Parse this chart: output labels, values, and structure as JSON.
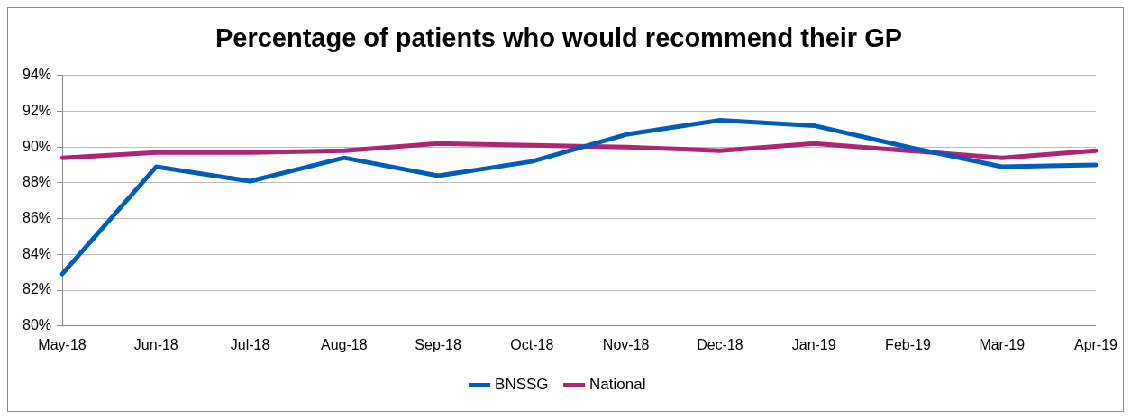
{
  "chart_data": {
    "type": "line",
    "title": "Percentage of patients who would recommend their GP",
    "categories": [
      "May-18",
      "Jun-18",
      "Jul-18",
      "Aug-18",
      "Sep-18",
      "Oct-18",
      "Nov-18",
      "Dec-18",
      "Jan-19",
      "Feb-19",
      "Mar-19",
      "Apr-19"
    ],
    "series": [
      {
        "name": "BNSSG",
        "color": "#005eb8",
        "values": [
          82.9,
          88.9,
          88.1,
          89.4,
          88.4,
          89.2,
          90.7,
          91.5,
          91.2,
          90.0,
          88.9,
          89.0
        ]
      },
      {
        "name": "National",
        "color": "#ae2573",
        "values": [
          89.4,
          89.7,
          89.7,
          89.8,
          90.2,
          90.1,
          90.0,
          89.8,
          90.2,
          89.8,
          89.4,
          89.8
        ]
      }
    ],
    "ylim": [
      80,
      94
    ],
    "yticks": [
      {
        "value": 80,
        "label": "80%"
      },
      {
        "value": 82,
        "label": "82%"
      },
      {
        "value": 84,
        "label": "84%"
      },
      {
        "value": 86,
        "label": "86%"
      },
      {
        "value": 88,
        "label": "88%"
      },
      {
        "value": 90,
        "label": "90%"
      },
      {
        "value": 92,
        "label": "92%"
      },
      {
        "value": 94,
        "label": "94%"
      }
    ],
    "grid": "y",
    "legend": "bottom",
    "marker": "none",
    "line_style": "solid"
  }
}
